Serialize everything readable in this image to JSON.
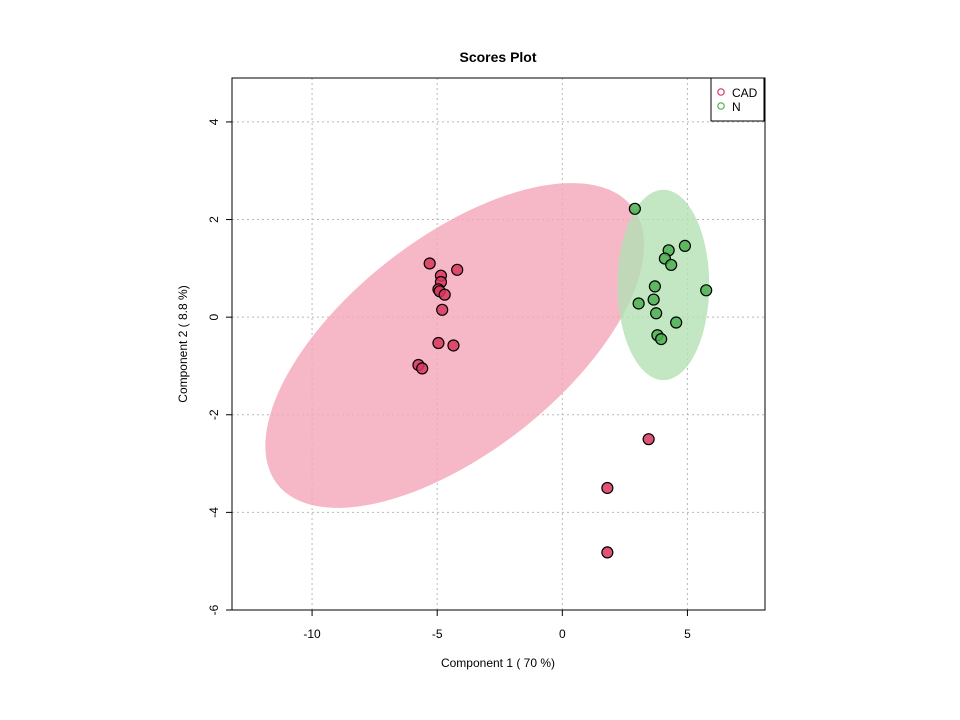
{
  "chart_data": {
    "type": "scatter",
    "title": "Scores Plot",
    "xlabel": "Component 1 ( 70 %)",
    "ylabel": "Component 2 ( 8.8 %)",
    "xlim": [
      -13.2,
      8.1
    ],
    "ylim": [
      -6.0,
      4.9
    ],
    "xticks": [
      -10,
      -5,
      0,
      5
    ],
    "yticks": [
      -6,
      -4,
      -2,
      0,
      2,
      4
    ],
    "xtick_labels": [
      "-10",
      "-5",
      "0",
      "5"
    ],
    "ytick_labels": [
      "-6",
      "-4",
      "-2",
      "0",
      "2",
      "4"
    ],
    "grid": true,
    "legend_position": "top-right",
    "series": [
      {
        "name": "CAD",
        "color": "#d9365e",
        "ellipse_color": "#f4a6b9",
        "ellipse": {
          "cx": -4.3,
          "cy": -0.58,
          "rx": 9.0,
          "ry": 2.2,
          "angle_deg": 38
        },
        "points": [
          {
            "x": -5.3,
            "y": 1.1
          },
          {
            "x": -4.2,
            "y": 0.97
          },
          {
            "x": -4.85,
            "y": 0.85
          },
          {
            "x": -4.85,
            "y": 0.72
          },
          {
            "x": -4.95,
            "y": 0.57
          },
          {
            "x": -4.9,
            "y": 0.53
          },
          {
            "x": -4.7,
            "y": 0.46
          },
          {
            "x": -4.8,
            "y": 0.15
          },
          {
            "x": -4.95,
            "y": -0.53
          },
          {
            "x": -4.35,
            "y": -0.58
          },
          {
            "x": -5.75,
            "y": -0.98
          },
          {
            "x": -5.6,
            "y": -1.05
          },
          {
            "x": 3.45,
            "y": -2.5
          },
          {
            "x": 1.8,
            "y": -3.5
          },
          {
            "x": 1.8,
            "y": -4.82
          }
        ]
      },
      {
        "name": "N",
        "color": "#4caf50",
        "ellipse_color": "#b4e0b4",
        "ellipse": {
          "cx": 4.04,
          "cy": 0.66,
          "rx": 1.83,
          "ry": 1.95,
          "angle_deg": 0
        },
        "points": [
          {
            "x": 2.9,
            "y": 2.22
          },
          {
            "x": 4.9,
            "y": 1.46
          },
          {
            "x": 4.25,
            "y": 1.37
          },
          {
            "x": 4.1,
            "y": 1.2
          },
          {
            "x": 4.35,
            "y": 1.07
          },
          {
            "x": 3.7,
            "y": 0.63
          },
          {
            "x": 5.75,
            "y": 0.55
          },
          {
            "x": 3.65,
            "y": 0.36
          },
          {
            "x": 3.05,
            "y": 0.28
          },
          {
            "x": 3.75,
            "y": 0.08
          },
          {
            "x": 4.55,
            "y": -0.11
          },
          {
            "x": 3.8,
            "y": -0.37
          },
          {
            "x": 3.95,
            "y": -0.45
          }
        ]
      }
    ]
  }
}
